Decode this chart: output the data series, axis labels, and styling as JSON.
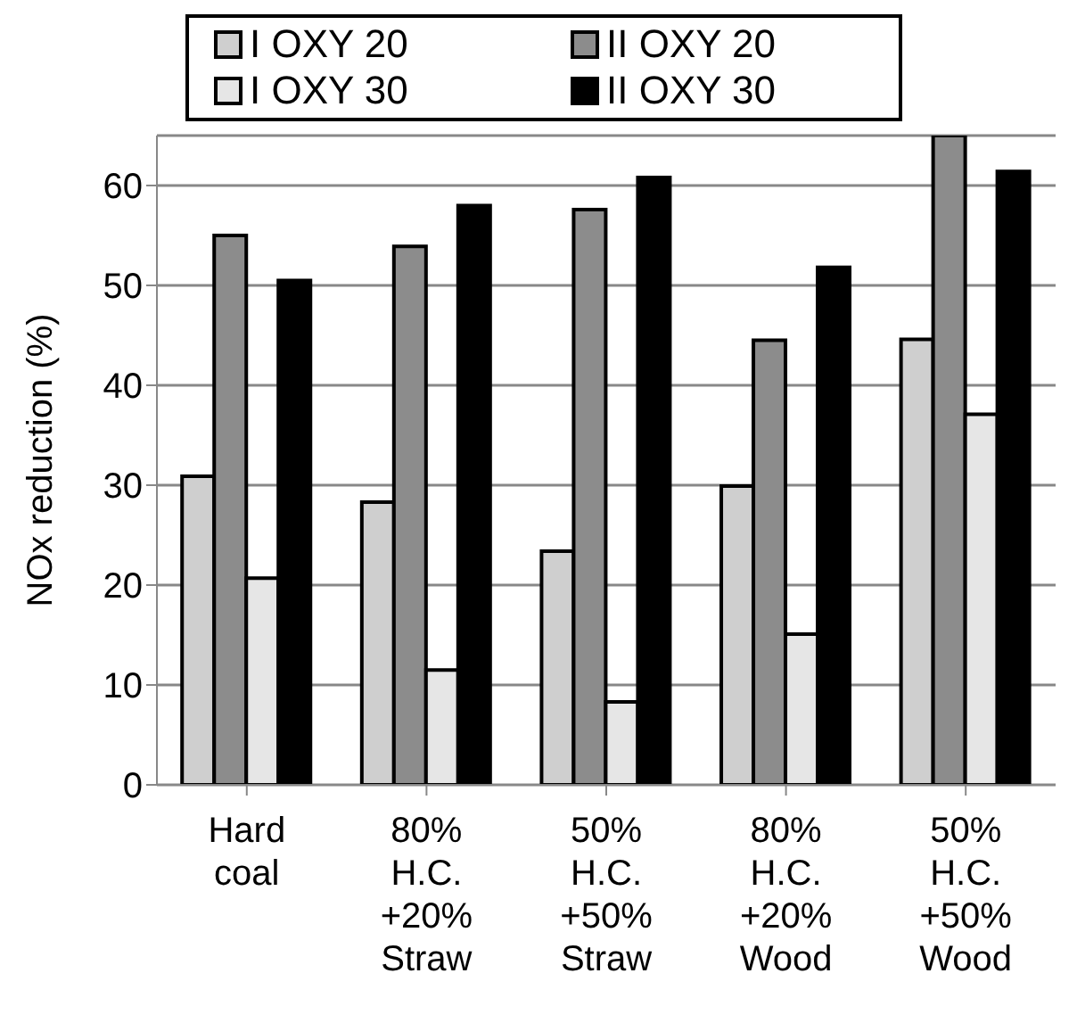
{
  "chart_data": {
    "type": "bar",
    "ylabel": "NOx reduction (%)",
    "categories": [
      "Hard\ncoal",
      "80%\nH.C.\n+20%\nStraw",
      "50%\nH.C.\n+50%\nStraw",
      "80%\nH.C.\n+20%\nWood",
      "50%\nH.C.\n+50%\nWood"
    ],
    "series": [
      {
        "name": "I OXY 20",
        "color": "#cfcfcf",
        "values": [
          30.9,
          28.3,
          23.4,
          29.9,
          44.6
        ]
      },
      {
        "name": "II OXY 20",
        "color": "#8c8c8c",
        "values": [
          55.0,
          53.9,
          57.6,
          44.5,
          65
        ]
      },
      {
        "name": "I OXY 30",
        "color": "#e6e6e6",
        "values": [
          20.7,
          11.5,
          8.3,
          15.1,
          37.1
        ]
      },
      {
        "name": "II OXY 30",
        "color": "#000000",
        "values": [
          50.5,
          58.0,
          60.8,
          51.8,
          61.4
        ]
      }
    ],
    "ylim": [
      0,
      65
    ],
    "yticks": [
      0,
      10,
      20,
      30,
      40,
      50,
      60
    ],
    "grid": "y",
    "legend": "top"
  }
}
